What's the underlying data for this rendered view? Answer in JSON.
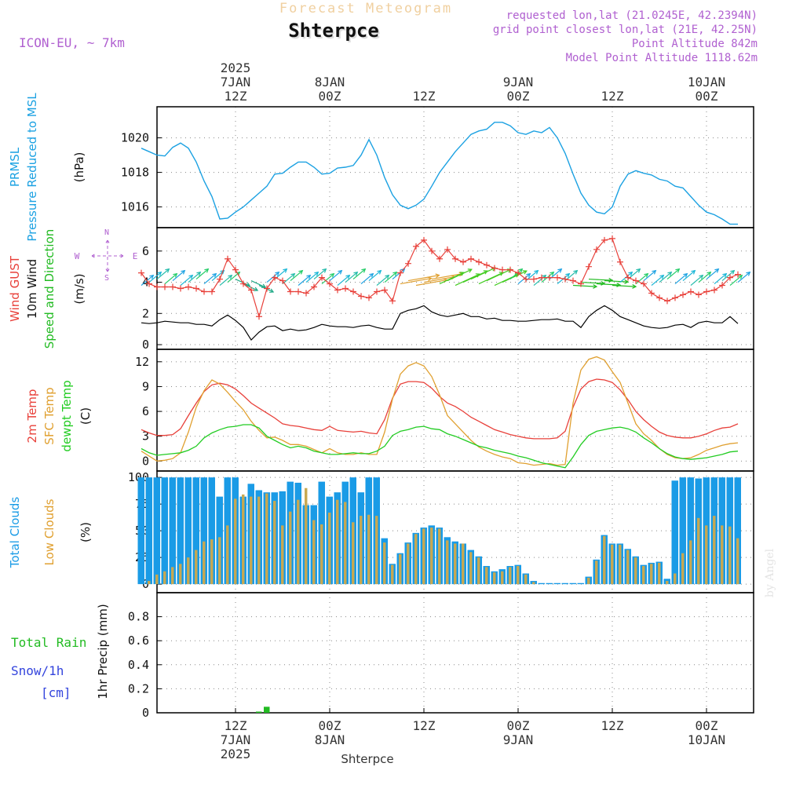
{
  "header": {
    "forecast_title": "Forecast Meteogram",
    "location": "Shterpce",
    "model": "ICON-EU, ~ 7km",
    "requested": "requested lon,lat (21.0245E, 42.2394N)",
    "grid_point": "grid point closest lon,lat (21E, 42.25N)",
    "point_alt": "Point Altitude 842m",
    "model_alt": "Model Point Altitude 1118.62m",
    "footer_location": "Shterpce",
    "credit": "by Angel"
  },
  "colors": {
    "pressure": "#1ba1e2",
    "gust": "#e8403a",
    "wind": "#000000",
    "dir": "#22bb22",
    "temp": "#e8403a",
    "sfc": "#e0a030",
    "dew": "#22cc22",
    "total_cloud": "#1a9be6",
    "low_cloud": "#c8a850",
    "rain": "#22bb22",
    "snow": "#3344dd",
    "purple": "#b060d0"
  },
  "time_axis": {
    "top": [
      {
        "h": 12,
        "l1": "2025",
        "l2": "7JAN",
        "l3": "12Z"
      },
      {
        "h": 24,
        "l1": "",
        "l2": "8JAN",
        "l3": "00Z"
      },
      {
        "h": 36,
        "l1": "",
        "l2": "",
        "l3": "12Z"
      },
      {
        "h": 48,
        "l1": "",
        "l2": "9JAN",
        "l3": "00Z"
      },
      {
        "h": 60,
        "l1": "",
        "l2": "",
        "l3": "12Z"
      },
      {
        "h": 72,
        "l1": "",
        "l2": "10JAN",
        "l3": "00Z"
      }
    ],
    "bottom": [
      {
        "h": 12,
        "l1": "12Z",
        "l2": "7JAN",
        "l3": "2025"
      },
      {
        "h": 24,
        "l1": "00Z",
        "l2": "8JAN",
        "l3": ""
      },
      {
        "h": 36,
        "l1": "12Z",
        "l2": "",
        "l3": ""
      },
      {
        "h": 48,
        "l1": "00Z",
        "l2": "9JAN",
        "l3": ""
      },
      {
        "h": 60,
        "l1": "12Z",
        "l2": "",
        "l3": ""
      },
      {
        "h": 72,
        "l1": "00Z",
        "l2": "10JAN",
        "l3": ""
      }
    ]
  },
  "chart_data": [
    {
      "type": "line",
      "title": "PRMSL Pressure Reduced to MSL",
      "ylabel_1": "PRMSL",
      "ylabel_2": "Pressure Reduced to MSL",
      "unit": "(hPa)",
      "ylim": [
        1014.8,
        1021.8
      ],
      "yticks": [
        1016,
        1018,
        1020
      ],
      "x": [
        0,
        1,
        2,
        3,
        4,
        5,
        6,
        7,
        8,
        9,
        10,
        11,
        12,
        13,
        14,
        15,
        16,
        17,
        18,
        19,
        20,
        21,
        22,
        23,
        24,
        25,
        26,
        27,
        28,
        29,
        30,
        31,
        32,
        33,
        34,
        35,
        36,
        37,
        38,
        39,
        40,
        41,
        42,
        43,
        44,
        45,
        46,
        47,
        48,
        49,
        50,
        51,
        52,
        53,
        54,
        55,
        56,
        57,
        58,
        59,
        60,
        61,
        62,
        63,
        64,
        65,
        66,
        67,
        68,
        69,
        70,
        71,
        72,
        73,
        74,
        75,
        76
      ],
      "series": [
        {
          "name": "PRMSL",
          "values": [
            1019.4,
            1019.2,
            1019.0,
            1018.95,
            1019.45,
            1019.7,
            1019.4,
            1018.6,
            1017.5,
            1016.6,
            1015.3,
            1015.35,
            1015.7,
            1016.0,
            1016.4,
            1016.8,
            1017.2,
            1017.9,
            1017.95,
            1018.3,
            1018.6,
            1018.6,
            1018.3,
            1017.9,
            1017.95,
            1018.25,
            1018.3,
            1018.4,
            1019.0,
            1019.9,
            1019.0,
            1017.7,
            1016.7,
            1016.1,
            1015.9,
            1016.1,
            1016.45,
            1017.2,
            1018.0,
            1018.6,
            1019.2,
            1019.7,
            1020.2,
            1020.4,
            1020.5,
            1020.9,
            1020.9,
            1020.7,
            1020.3,
            1020.2,
            1020.4,
            1020.3,
            1020.6,
            1020.0,
            1019.1,
            1017.9,
            1016.8,
            1016.1,
            1015.7,
            1015.6,
            1016.0,
            1017.2,
            1017.9,
            1018.1,
            1017.95,
            1017.85,
            1017.6,
            1017.5,
            1017.2,
            1017.1,
            1016.6,
            1016.1,
            1015.7,
            1015.55,
            1015.3,
            1015.0,
            1015.0
          ]
        }
      ]
    },
    {
      "type": "line",
      "title": "Wind GUST / 10m Wind Speed and Direction",
      "ylabel_1": "Wind GUST",
      "ylabel_2": "10m Wind",
      "ylabel_3": "Speed and Direction",
      "unit": "(m/s)",
      "compass": {
        "n": "N",
        "s": "S",
        "w": "W",
        "e": "E"
      },
      "ylim": [
        -0.3,
        7.5
      ],
      "yticks": [
        0,
        2,
        4,
        6
      ],
      "x": [
        0,
        1,
        2,
        3,
        4,
        5,
        6,
        7,
        8,
        9,
        10,
        11,
        12,
        13,
        14,
        15,
        16,
        17,
        18,
        19,
        20,
        21,
        22,
        23,
        24,
        25,
        26,
        27,
        28,
        29,
        30,
        31,
        32,
        33,
        34,
        35,
        36,
        37,
        38,
        39,
        40,
        41,
        42,
        43,
        44,
        45,
        46,
        47,
        48,
        49,
        50,
        51,
        52,
        53,
        54,
        55,
        56,
        57,
        58,
        59,
        60,
        61,
        62,
        63,
        64,
        65,
        66,
        67,
        68,
        69,
        70,
        71,
        72,
        73,
        74,
        75,
        76
      ],
      "series": [
        {
          "name": "Wind GUST",
          "values": [
            4.6,
            3.9,
            3.7,
            3.7,
            3.7,
            3.6,
            3.7,
            3.6,
            3.4,
            3.4,
            4.2,
            5.5,
            4.8,
            3.9,
            3.5,
            1.8,
            3.6,
            4.3,
            4.1,
            3.4,
            3.4,
            3.3,
            3.7,
            4.3,
            3.9,
            3.5,
            3.6,
            3.4,
            3.1,
            3.0,
            3.4,
            3.5,
            2.8,
            4.6,
            5.2,
            6.3,
            6.7,
            6.0,
            5.5,
            6.1,
            5.5,
            5.3,
            5.5,
            5.3,
            5.1,
            4.9,
            4.8,
            4.8,
            4.6,
            4.2,
            4.2,
            4.3,
            4.3,
            4.3,
            4.2,
            4.1,
            3.9,
            5.0,
            6.1,
            6.7,
            6.8,
            5.3,
            4.3,
            4.1,
            3.9,
            3.3,
            3.0,
            2.8,
            3.0,
            3.2,
            3.4,
            3.2,
            3.4,
            3.5,
            3.8,
            4.3,
            4.5
          ]
        },
        {
          "name": "10m Wind",
          "values": [
            1.4,
            1.35,
            1.4,
            1.5,
            1.45,
            1.4,
            1.4,
            1.3,
            1.3,
            1.2,
            1.6,
            1.9,
            1.55,
            1.1,
            0.3,
            0.8,
            1.15,
            1.2,
            0.9,
            1.0,
            0.9,
            0.95,
            1.1,
            1.3,
            1.2,
            1.15,
            1.15,
            1.1,
            1.2,
            1.25,
            1.1,
            1.0,
            1.0,
            2.0,
            2.2,
            2.3,
            2.5,
            2.1,
            1.9,
            1.8,
            1.9,
            2.0,
            1.8,
            1.8,
            1.65,
            1.7,
            1.55,
            1.55,
            1.5,
            1.5,
            1.55,
            1.6,
            1.6,
            1.65,
            1.5,
            1.5,
            1.1,
            1.8,
            2.2,
            2.5,
            2.2,
            1.8,
            1.6,
            1.4,
            1.2,
            1.1,
            1.05,
            1.1,
            1.25,
            1.3,
            1.1,
            1.4,
            1.5,
            1.4,
            1.4,
            1.8,
            1.35
          ]
        }
      ]
    },
    {
      "type": "line",
      "title": "Temperature",
      "ylabel_1": "2m Temp",
      "ylabel_2": "SFC Temp",
      "ylabel_3": "dewpt Temp",
      "unit": "(C)",
      "ylim": [
        -1.2,
        13.5
      ],
      "yticks": [
        0,
        3,
        6,
        9,
        12
      ],
      "x": [
        0,
        1,
        2,
        3,
        4,
        5,
        6,
        7,
        8,
        9,
        10,
        11,
        12,
        13,
        14,
        15,
        16,
        17,
        18,
        19,
        20,
        21,
        22,
        23,
        24,
        25,
        26,
        27,
        28,
        29,
        30,
        31,
        32,
        33,
        34,
        35,
        36,
        37,
        38,
        39,
        40,
        41,
        42,
        43,
        44,
        45,
        46,
        47,
        48,
        49,
        50,
        51,
        52,
        53,
        54,
        55,
        56,
        57,
        58,
        59,
        60,
        61,
        62,
        63,
        64,
        65,
        66,
        67,
        68,
        69,
        70,
        71,
        72,
        73,
        74,
        75,
        76
      ],
      "series": [
        {
          "name": "2m Temp",
          "values": [
            3.8,
            3.4,
            3.1,
            3.1,
            3.2,
            3.9,
            5.5,
            7.0,
            8.4,
            9.2,
            9.4,
            9.2,
            8.7,
            7.9,
            7.0,
            6.4,
            5.8,
            5.2,
            4.5,
            4.3,
            4.2,
            4.0,
            3.8,
            3.7,
            4.2,
            3.7,
            3.6,
            3.5,
            3.6,
            3.4,
            3.3,
            5.0,
            7.6,
            9.3,
            9.6,
            9.6,
            9.5,
            8.8,
            7.8,
            7.0,
            6.6,
            6.0,
            5.3,
            4.8,
            4.3,
            3.8,
            3.5,
            3.2,
            3.0,
            2.8,
            2.7,
            2.7,
            2.7,
            2.8,
            3.6,
            6.5,
            8.7,
            9.6,
            9.9,
            9.8,
            9.5,
            8.6,
            7.4,
            6.0,
            5.0,
            4.2,
            3.5,
            3.1,
            2.9,
            2.8,
            2.8,
            3.0,
            3.3,
            3.7,
            4.0,
            4.1,
            4.5
          ]
        },
        {
          "name": "SFC Temp",
          "values": [
            1.2,
            0.6,
            0.0,
            0.1,
            0.3,
            1.0,
            3.5,
            6.5,
            8.5,
            9.8,
            9.3,
            8.3,
            7.2,
            6.2,
            4.8,
            3.7,
            2.8,
            2.9,
            2.5,
            2.0,
            2.0,
            1.8,
            1.4,
            1.0,
            1.5,
            1.0,
            0.8,
            0.8,
            1.0,
            0.8,
            0.8,
            3.5,
            7.5,
            10.5,
            11.5,
            11.9,
            11.5,
            10.2,
            8.0,
            5.5,
            4.5,
            3.5,
            2.5,
            1.7,
            1.2,
            0.8,
            0.5,
            0.3,
            -0.2,
            -0.3,
            -0.5,
            -0.4,
            -0.3,
            -0.5,
            -0.4,
            7.0,
            11.0,
            12.3,
            12.6,
            12.2,
            10.8,
            9.5,
            7.0,
            4.5,
            3.3,
            2.5,
            1.5,
            0.8,
            0.4,
            0.3,
            0.4,
            0.8,
            1.3,
            1.6,
            1.9,
            2.1,
            2.2
          ]
        },
        {
          "name": "dewpt Temp",
          "values": [
            1.5,
            1.0,
            0.7,
            0.8,
            0.9,
            1.0,
            1.3,
            1.8,
            2.8,
            3.4,
            3.8,
            4.1,
            4.2,
            4.4,
            4.4,
            4.0,
            3.0,
            2.5,
            2.0,
            1.6,
            1.8,
            1.6,
            1.2,
            1.0,
            0.8,
            0.8,
            0.9,
            1.0,
            0.9,
            0.9,
            1.2,
            1.8,
            3.1,
            3.6,
            3.8,
            4.1,
            4.2,
            3.9,
            3.8,
            3.3,
            3.0,
            2.6,
            2.2,
            1.8,
            1.6,
            1.3,
            1.1,
            0.9,
            0.6,
            0.4,
            0.1,
            -0.2,
            -0.4,
            -0.6,
            -0.8,
            0.5,
            2.0,
            3.1,
            3.6,
            3.8,
            4.0,
            4.1,
            3.9,
            3.5,
            2.8,
            2.2,
            1.5,
            0.9,
            0.5,
            0.3,
            0.2,
            0.3,
            0.4,
            0.6,
            0.8,
            1.1,
            1.2
          ]
        }
      ]
    },
    {
      "type": "bar",
      "title": "Total Clouds / Low Clouds",
      "ylabel_1": "Total Clouds",
      "ylabel_2": "Low Clouds",
      "unit": "(%)",
      "ylim": [
        -8,
        106
      ],
      "yticks": [
        0,
        25,
        50,
        75,
        100
      ],
      "x": [
        0,
        1,
        2,
        3,
        4,
        5,
        6,
        7,
        8,
        9,
        10,
        11,
        12,
        13,
        14,
        15,
        16,
        17,
        18,
        19,
        20,
        21,
        22,
        23,
        24,
        25,
        26,
        27,
        28,
        29,
        30,
        31,
        32,
        33,
        34,
        35,
        36,
        37,
        38,
        39,
        40,
        41,
        42,
        43,
        44,
        45,
        46,
        47,
        48,
        49,
        50,
        51,
        52,
        53,
        54,
        55,
        56,
        57,
        58,
        59,
        60,
        61,
        62,
        63,
        64,
        65,
        66,
        67,
        68,
        69,
        70,
        71,
        72,
        73,
        74,
        75,
        76
      ],
      "series": [
        {
          "name": "Total Clouds",
          "values": [
            100,
            100,
            100,
            100,
            100,
            100,
            100,
            100,
            100,
            100,
            82,
            100,
            100,
            82,
            94,
            88,
            86,
            86,
            87,
            96,
            95,
            74,
            74,
            96,
            82,
            86,
            96,
            100,
            86,
            100,
            100,
            43,
            19,
            29,
            39,
            48,
            53,
            55,
            53,
            44,
            40,
            38,
            32,
            26,
            17,
            12,
            14,
            17,
            18,
            10,
            3,
            1,
            1,
            1,
            1,
            1,
            1,
            7,
            23,
            46,
            38,
            38,
            33,
            26,
            18,
            20,
            21,
            5,
            97,
            100,
            100,
            99,
            100,
            100,
            100,
            100,
            100
          ]
        },
        {
          "name": "Low Clouds",
          "values": [
            0,
            3,
            9,
            12,
            16,
            19,
            25,
            32,
            40,
            42,
            44,
            55,
            80,
            84,
            82,
            82,
            85,
            78,
            55,
            68,
            79,
            90,
            60,
            56,
            67,
            79,
            77,
            58,
            64,
            65,
            64,
            39,
            18,
            28,
            38,
            47,
            52,
            53,
            52,
            41,
            38,
            38,
            30,
            25,
            16,
            11,
            12,
            16,
            17,
            9,
            2,
            0,
            0,
            0,
            0,
            0,
            0,
            6,
            22,
            45,
            37,
            37,
            32,
            25,
            17,
            19,
            20,
            3,
            10,
            29,
            41,
            62,
            55,
            64,
            55,
            54,
            43
          ]
        }
      ]
    },
    {
      "type": "bar",
      "title": "Total Rain / Snow 1hr Precip",
      "ylabel_1": "Total Rain",
      "ylabel_2": "Snow/1h",
      "ylabel_3": "[cm]",
      "unit": "1hr Precip (mm)",
      "ylim": [
        0,
        1.0
      ],
      "yticks": [
        0,
        0.2,
        0.4,
        0.6,
        0.8
      ],
      "ytick_labels": [
        "0",
        "0.2",
        "0.4",
        "0.6",
        "0.8"
      ],
      "x": [
        15,
        16
      ],
      "series": [
        {
          "name": "Total Rain",
          "values": [
            0.01,
            0.05
          ]
        },
        {
          "name": "Snow/1h",
          "values": [
            0,
            0
          ]
        }
      ]
    }
  ]
}
